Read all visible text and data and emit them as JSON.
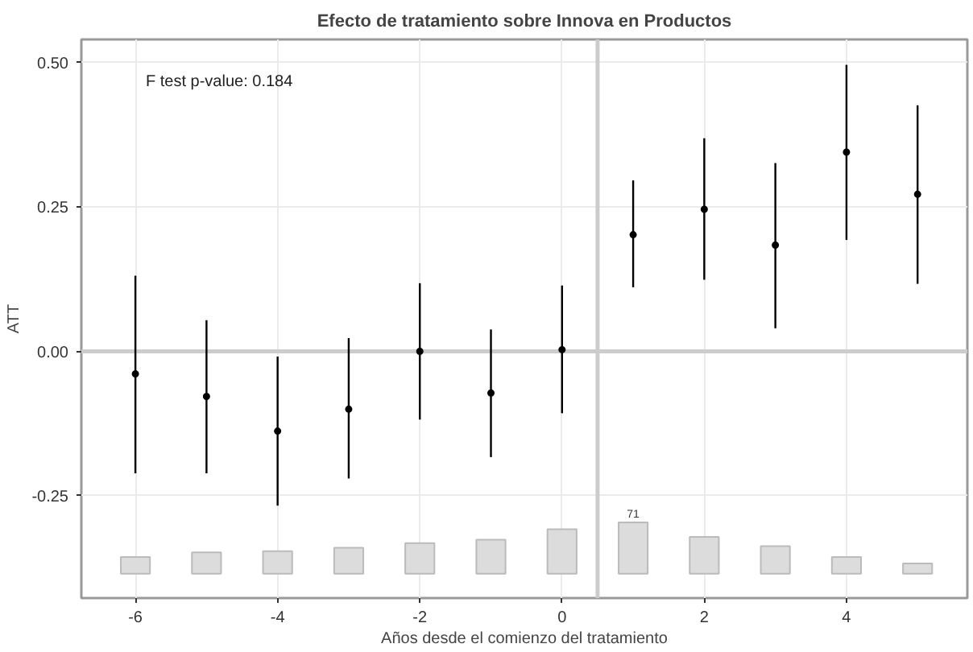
{
  "chart_data": {
    "type": "scatter",
    "title": "Efecto de tratamiento sobre Innova en Productos",
    "xlabel": "Años desde el comienzo del tratamiento",
    "ylabel": "ATT",
    "annotations": [
      "F test p-value: 0.184",
      {
        "text": "71",
        "x": 1,
        "y": -0.296
      }
    ],
    "x": [
      -6,
      -5,
      -4,
      -3,
      -2,
      -1,
      0,
      1,
      2,
      3,
      4,
      5
    ],
    "series": [
      {
        "type": "bar",
        "color": "#dcdcdc",
        "base": [
          -0.385,
          -0.385,
          -0.385,
          -0.385,
          -0.385,
          -0.385,
          -0.385,
          -0.385,
          -0.385,
          -0.385,
          -0.385,
          -0.385
        ],
        "values": [
          0.029,
          0.037,
          0.039,
          0.045,
          0.053,
          0.059,
          0.077,
          0.089,
          0.064,
          0.048,
          0.029,
          0.018
        ]
      },
      {
        "color": "#000000",
        "values": [
          -0.039,
          -0.078,
          -0.138,
          -0.1,
          0.0,
          -0.072,
          0.003,
          0.202,
          0.246,
          0.184,
          0.345,
          0.272
        ],
        "errors": [
          [
            -0.211,
            0.131
          ],
          [
            -0.211,
            0.054
          ],
          [
            -0.267,
            -0.009
          ],
          [
            -0.22,
            0.023
          ],
          [
            -0.118,
            0.118
          ],
          [
            -0.183,
            0.038
          ],
          [
            -0.107,
            0.114
          ],
          [
            0.111,
            0.296
          ],
          [
            0.124,
            0.369
          ],
          [
            0.04,
            0.326
          ],
          [
            0.193,
            0.496
          ],
          [
            0.117,
            0.426
          ]
        ]
      }
    ],
    "ref_lines": [
      {
        "axis": "x",
        "value": 0.5,
        "color": "#cccccc"
      },
      {
        "axis": "y",
        "value": 0,
        "color": "#cccccc"
      }
    ],
    "xlim": [
      -6.76,
      5.7
    ],
    "xticks": [
      -6,
      -4,
      -2,
      0,
      2,
      4
    ],
    "ylim": [
      -0.427,
      0.54
    ],
    "yticks": [
      {
        "value": -0.25,
        "label": "-0.25"
      },
      {
        "value": 0,
        "label": "0.00"
      },
      {
        "value": 0.25,
        "label": "0.25"
      },
      {
        "value": 0.5,
        "label": "0.50"
      }
    ],
    "grid": true,
    "marker": "circle"
  }
}
